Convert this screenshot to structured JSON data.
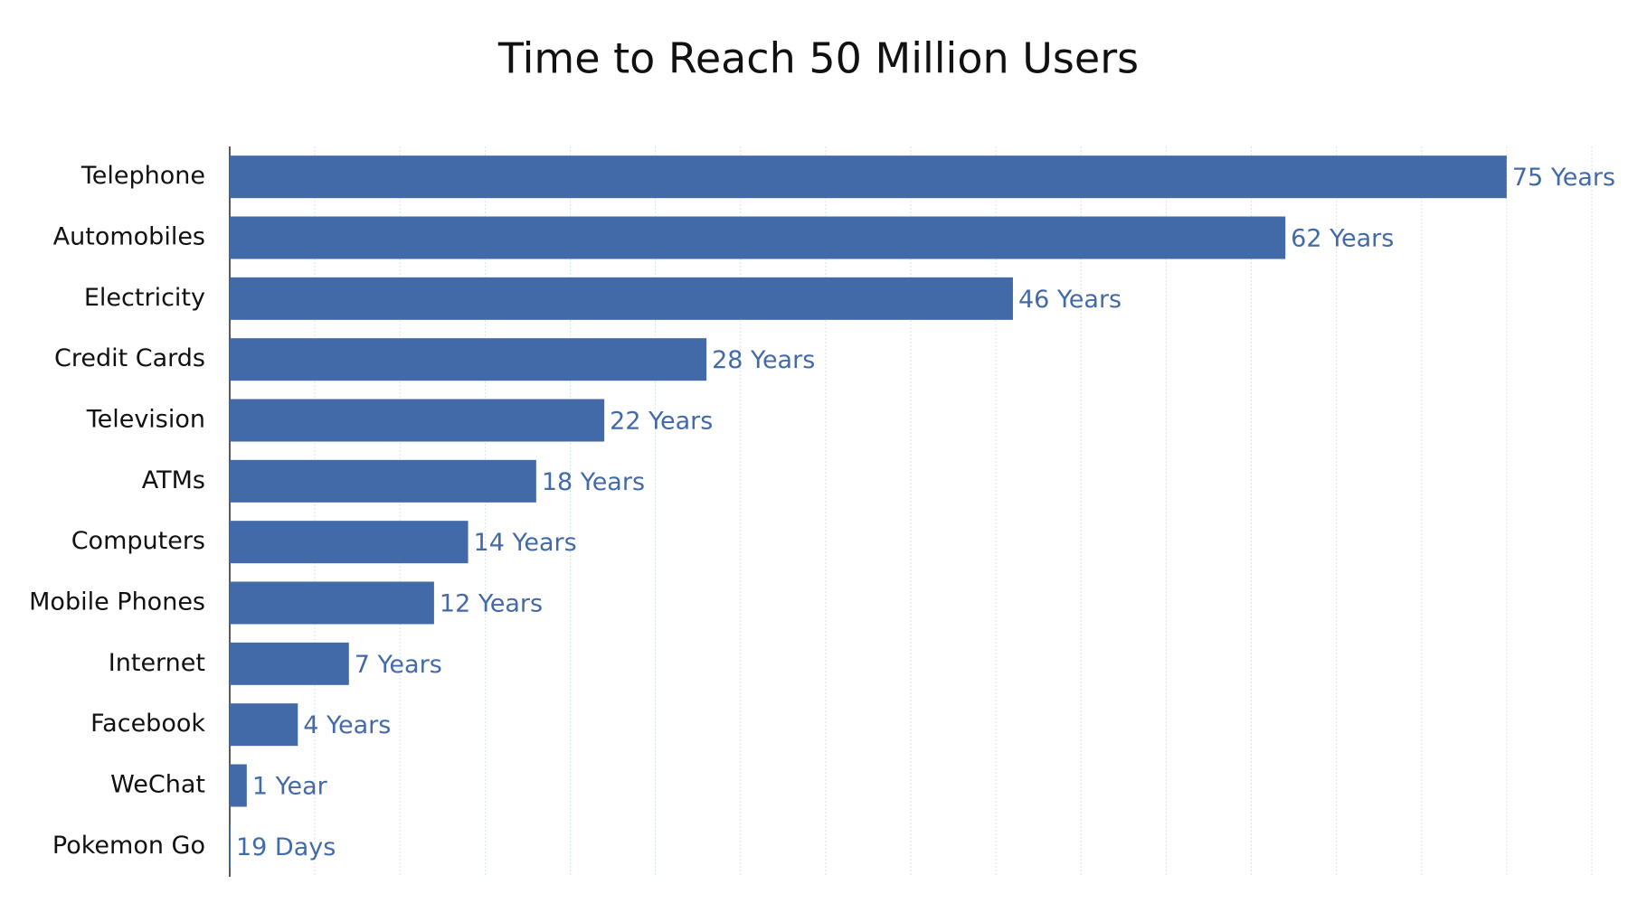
{
  "chart_data": {
    "type": "barh",
    "title": "Time to Reach 50 Million Users",
    "categories": [
      "Telephone",
      "Automobiles",
      "Electricity",
      "Credit Cards",
      "Television",
      "ATMs",
      "Computers",
      "Mobile Phones",
      "Internet",
      "Facebook",
      "WeChat",
      "Pokemon Go"
    ],
    "values": [
      75,
      62,
      46,
      28,
      22,
      18,
      14,
      12,
      7,
      4,
      1,
      0.052
    ],
    "value_labels": [
      "75 Years",
      "62 Years",
      "46 Years",
      "28 Years",
      "22 Years",
      "18 Years",
      "14 Years",
      "12 Years",
      "7 Years",
      "4 Years",
      "1 Year",
      "19 Days"
    ],
    "color": "#436aa8",
    "xlim": [
      0,
      80
    ],
    "xticks": [
      0,
      5,
      10,
      15,
      20,
      25,
      30,
      35,
      40,
      45,
      50,
      55,
      60,
      65,
      70,
      75,
      80
    ],
    "grid": true
  }
}
